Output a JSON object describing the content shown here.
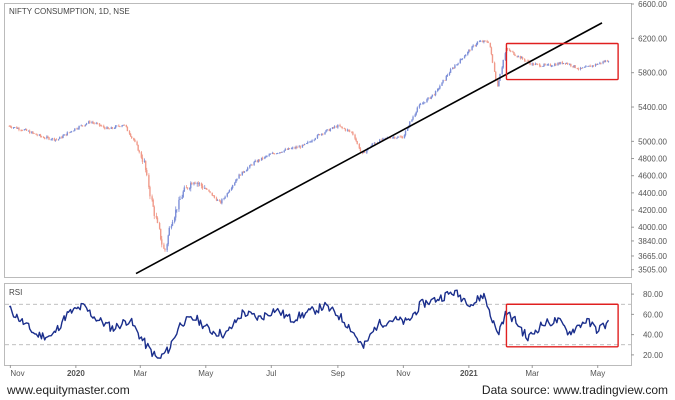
{
  "chart_data": [
    {
      "type": "candlestick",
      "title": "NIFTY CONSUMPTION, 1D, NSE",
      "y_ticks": [
        3505,
        3665,
        3840,
        4000,
        4200,
        4400,
        4600,
        4800,
        5000,
        5400,
        5800,
        6200,
        6600
      ],
      "ylim": [
        3420,
        6600
      ],
      "x_ticks": [
        "Nov",
        "2020",
        "Mar",
        "May",
        "Jul",
        "Sep",
        "Nov",
        "2021",
        "Mar",
        "May"
      ],
      "series": [
        {
          "values": [
            [
              "2019-10-31",
              5180
            ],
            [
              "2019-11-15",
              5130
            ],
            [
              "2019-12-01",
              5050
            ],
            [
              "2019-12-15",
              5020
            ],
            [
              "2020-01-01",
              5150
            ],
            [
              "2020-01-15",
              5230
            ],
            [
              "2020-02-01",
              5140
            ],
            [
              "2020-02-15",
              5200
            ],
            [
              "2020-02-25",
              5000
            ],
            [
              "2020-03-05",
              4750
            ],
            [
              "2020-03-12",
              4300
            ],
            [
              "2020-03-18",
              4000
            ],
            [
              "2020-03-24",
              3700
            ],
            [
              "2020-03-30",
              4050
            ],
            [
              "2020-04-10",
              4400
            ],
            [
              "2020-04-20",
              4550
            ],
            [
              "2020-05-01",
              4450
            ],
            [
              "2020-05-15",
              4280
            ],
            [
              "2020-06-01",
              4600
            ],
            [
              "2020-06-15",
              4750
            ],
            [
              "2020-07-01",
              4850
            ],
            [
              "2020-07-15",
              4900
            ],
            [
              "2020-08-01",
              4950
            ],
            [
              "2020-08-15",
              5080
            ],
            [
              "2020-09-01",
              5180
            ],
            [
              "2020-09-15",
              5100
            ],
            [
              "2020-09-24",
              4850
            ],
            [
              "2020-10-05",
              4980
            ],
            [
              "2020-10-20",
              5050
            ],
            [
              "2020-11-01",
              5050
            ],
            [
              "2020-11-15",
              5400
            ],
            [
              "2020-12-01",
              5560
            ],
            [
              "2020-12-15",
              5820
            ],
            [
              "2021-01-01",
              6050
            ],
            [
              "2021-01-10",
              6160
            ],
            [
              "2021-01-20",
              6160
            ],
            [
              "2021-01-28",
              5640
            ],
            [
              "2021-02-05",
              6080
            ],
            [
              "2021-02-15",
              6000
            ],
            [
              "2021-03-01",
              5900
            ],
            [
              "2021-03-15",
              5880
            ],
            [
              "2021-04-01",
              5920
            ],
            [
              "2021-04-15",
              5840
            ],
            [
              "2021-05-01",
              5900
            ],
            [
              "2021-05-12",
              5950
            ]
          ]
        }
      ],
      "trendline": {
        "color": "#000000",
        "points": [
          [
            "2020-02-26",
            3460
          ],
          [
            "2021-05-05",
            6380
          ]
        ]
      },
      "highlight_box": {
        "color": "#e02020",
        "x": [
          "2021-02-05",
          "2021-05-20"
        ],
        "y": [
          5720,
          6140
        ]
      }
    },
    {
      "type": "line",
      "title": "RSI",
      "y_ticks": [
        20,
        40,
        60,
        80
      ],
      "ylim": [
        10,
        90
      ],
      "series": [
        {
          "color": "#1a2e8c",
          "values": [
            [
              "2019-10-31",
              66
            ],
            [
              "2019-11-10",
              55
            ],
            [
              "2019-11-25",
              40
            ],
            [
              "2019-12-10",
              38
            ],
            [
              "2019-12-24",
              60
            ],
            [
              "2020-01-08",
              68
            ],
            [
              "2020-01-20",
              56
            ],
            [
              "2020-02-05",
              46
            ],
            [
              "2020-02-20",
              55
            ],
            [
              "2020-03-05",
              32
            ],
            [
              "2020-03-18",
              15
            ],
            [
              "2020-03-28",
              26
            ],
            [
              "2020-04-08",
              52
            ],
            [
              "2020-04-22",
              56
            ],
            [
              "2020-05-05",
              44
            ],
            [
              "2020-05-20",
              40
            ],
            [
              "2020-06-05",
              62
            ],
            [
              "2020-06-20",
              56
            ],
            [
              "2020-07-05",
              65
            ],
            [
              "2020-07-20",
              55
            ],
            [
              "2020-08-05",
              62
            ],
            [
              "2020-08-20",
              68
            ],
            [
              "2020-09-01",
              60
            ],
            [
              "2020-09-12",
              48
            ],
            [
              "2020-09-25",
              27
            ],
            [
              "2020-10-08",
              50
            ],
            [
              "2020-10-22",
              55
            ],
            [
              "2020-11-05",
              52
            ],
            [
              "2020-11-18",
              70
            ],
            [
              "2020-12-02",
              75
            ],
            [
              "2020-12-18",
              82
            ],
            [
              "2021-01-05",
              70
            ],
            [
              "2021-01-15",
              80
            ],
            [
              "2021-01-28",
              40
            ],
            [
              "2021-02-05",
              62
            ],
            [
              "2021-02-15",
              52
            ],
            [
              "2021-02-25",
              36
            ],
            [
              "2021-03-10",
              50
            ],
            [
              "2021-03-25",
              54
            ],
            [
              "2021-04-05",
              42
            ],
            [
              "2021-04-20",
              54
            ],
            [
              "2021-05-01",
              45
            ],
            [
              "2021-05-12",
              52
            ]
          ]
        }
      ],
      "reference_lines": [
        70,
        30
      ],
      "highlight_box": {
        "color": "#e02020",
        "x": [
          "2021-02-05",
          "2021-05-20"
        ],
        "y": [
          28,
          70
        ]
      }
    }
  ],
  "footer": {
    "left": "www.equitymaster.com",
    "right": "Data source: www.tradingview.com"
  }
}
